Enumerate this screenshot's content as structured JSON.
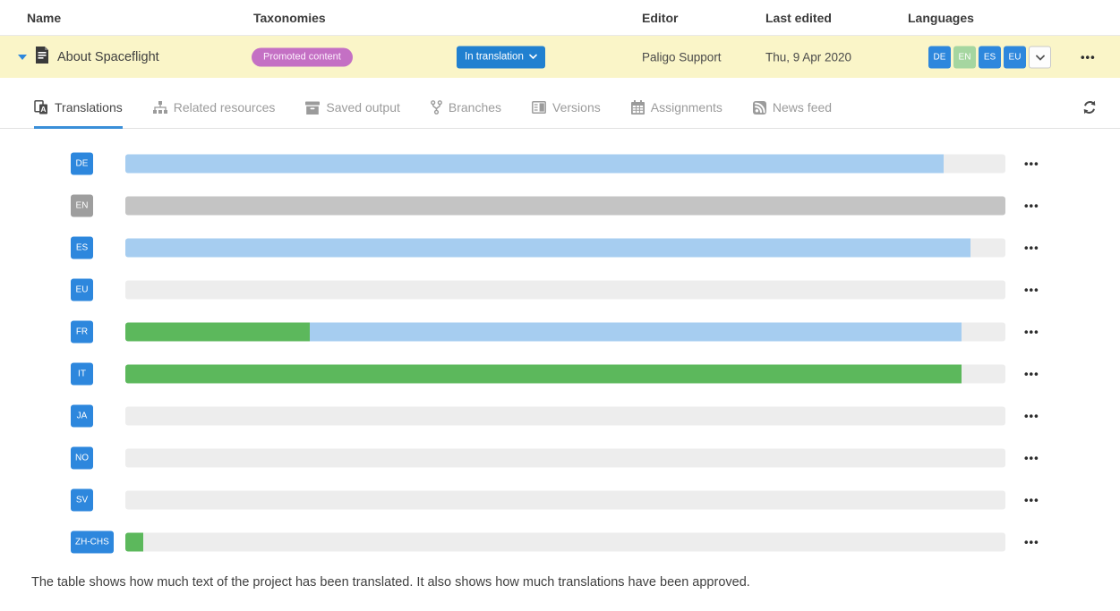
{
  "colors": {
    "approved": "#5cb85c",
    "translated": "#a6cdf0",
    "source": "#c4c4c4",
    "badge_blue": "#2d87dd",
    "badge_gray": "#9e9e9e",
    "badge_green": "#a5d6a0",
    "row_highlight": "#faf5c8",
    "status_button": "#2080d0",
    "taxonomy_pill": "#c470c4",
    "active_tab_underline": "#3a8fd8"
  },
  "table_header": {
    "name": "Name",
    "taxonomies": "Taxonomies",
    "editor": "Editor",
    "last_edited": "Last edited",
    "languages": "Languages"
  },
  "document_row": {
    "name": "About Spaceflight",
    "taxonomy_badge": "Promoted content",
    "status_label": "In translation",
    "editor": "Paligo Support",
    "last_edited": "Thu, 9 Apr 2020",
    "language_badges": [
      {
        "code": "DE",
        "color_key": "badge_blue"
      },
      {
        "code": "EN",
        "color_key": "badge_green"
      },
      {
        "code": "ES",
        "color_key": "badge_blue"
      },
      {
        "code": "EU",
        "color_key": "badge_blue"
      }
    ],
    "menu_icon": "ellipsis-icon",
    "more_languages_icon": "chevron-down-icon"
  },
  "tabs": [
    {
      "label": "Translations",
      "icon": "translations-icon",
      "active": true
    },
    {
      "label": "Related resources",
      "icon": "sitemap-icon",
      "active": false
    },
    {
      "label": "Saved output",
      "icon": "archive-icon",
      "active": false
    },
    {
      "label": "Branches",
      "icon": "branch-icon",
      "active": false
    },
    {
      "label": "Versions",
      "icon": "columns-icon",
      "active": false
    },
    {
      "label": "Assignments",
      "icon": "calendar-icon",
      "active": false
    },
    {
      "label": "News feed",
      "icon": "rss-icon",
      "active": false
    }
  ],
  "refresh_icon": "refresh-icon",
  "translation_rows": [
    {
      "code": "DE",
      "badge_color_key": "badge_blue",
      "segments": [
        {
          "type": "translated",
          "percent": 93
        }
      ]
    },
    {
      "code": "EN",
      "badge_color_key": "badge_gray",
      "segments": [
        {
          "type": "source",
          "percent": 100
        }
      ]
    },
    {
      "code": "ES",
      "badge_color_key": "badge_blue",
      "segments": [
        {
          "type": "translated",
          "percent": 96
        }
      ]
    },
    {
      "code": "EU",
      "badge_color_key": "badge_blue",
      "segments": []
    },
    {
      "code": "FR",
      "badge_color_key": "badge_blue",
      "segments": [
        {
          "type": "approved",
          "percent": 21
        },
        {
          "type": "translated",
          "percent": 74
        }
      ]
    },
    {
      "code": "IT",
      "badge_color_key": "badge_blue",
      "segments": [
        {
          "type": "approved",
          "percent": 95
        }
      ]
    },
    {
      "code": "JA",
      "badge_color_key": "badge_blue",
      "segments": []
    },
    {
      "code": "NO",
      "badge_color_key": "badge_blue",
      "segments": []
    },
    {
      "code": "SV",
      "badge_color_key": "badge_blue",
      "segments": []
    },
    {
      "code": "ZH-CHS",
      "badge_color_key": "badge_blue",
      "segments": [
        {
          "type": "approved",
          "percent": 2
        }
      ]
    }
  ],
  "ellipsis_glyph": "•••",
  "footer": {
    "caption": "The table shows how much text of the project has been translated. It also shows how much translations have been approved."
  }
}
